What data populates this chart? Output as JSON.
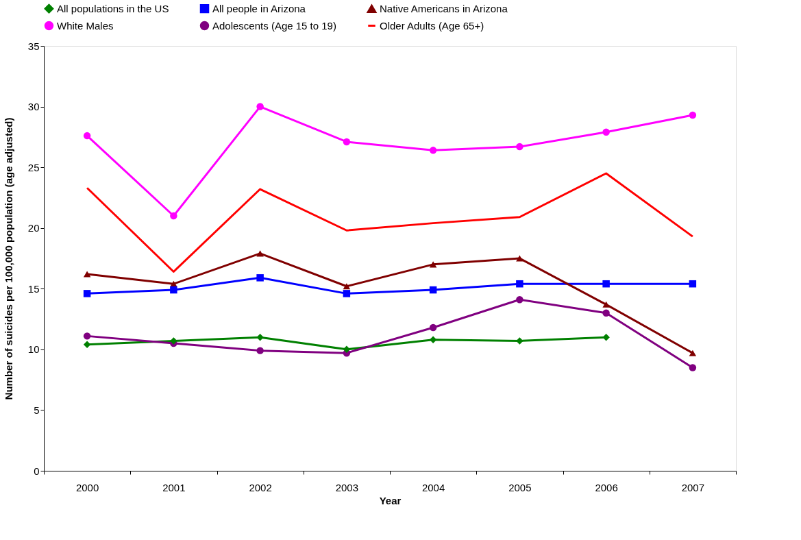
{
  "chart_data": {
    "type": "line",
    "xlabel": "Year",
    "ylabel": "Number of suicides per 100,000 population (age adjusted)",
    "categories": [
      "2000",
      "2001",
      "2002",
      "2003",
      "2004",
      "2005",
      "2006",
      "2007"
    ],
    "series": [
      {
        "name": "All populations in the US",
        "color": "#008000",
        "marker": "diamond",
        "values": [
          10.4,
          10.7,
          11.0,
          10.0,
          10.8,
          10.7,
          11.0,
          null
        ]
      },
      {
        "name": "All people in Arizona",
        "color": "#0000ff",
        "marker": "square",
        "values": [
          14.6,
          14.9,
          15.9,
          14.6,
          14.9,
          15.4,
          15.4,
          15.4
        ]
      },
      {
        "name": "Native Americans in Arizona",
        "color": "#800000",
        "marker": "triangle",
        "values": [
          16.2,
          15.4,
          17.9,
          15.2,
          17.0,
          17.5,
          13.7,
          9.7
        ]
      },
      {
        "name": "White Males",
        "color": "#ff00ff",
        "marker": "circle",
        "values": [
          27.6,
          21.0,
          30.0,
          27.1,
          26.4,
          26.7,
          27.9,
          29.3
        ]
      },
      {
        "name": "Adolescents (Age 15 to 19)",
        "color": "#800080",
        "marker": "circle",
        "values": [
          11.1,
          10.5,
          9.9,
          9.7,
          11.8,
          14.1,
          13.0,
          8.5
        ]
      },
      {
        "name": "Older Adults (Age 65+)",
        "color": "#ff0000",
        "marker": "none",
        "values": [
          23.3,
          16.4,
          23.2,
          19.8,
          20.4,
          20.9,
          24.5,
          19.3
        ]
      }
    ],
    "ylim": [
      0,
      35
    ],
    "yticks": [
      0,
      5,
      10,
      15,
      20,
      25,
      30,
      35
    ],
    "grid": false,
    "legend": "top",
    "line_style": "solid"
  }
}
